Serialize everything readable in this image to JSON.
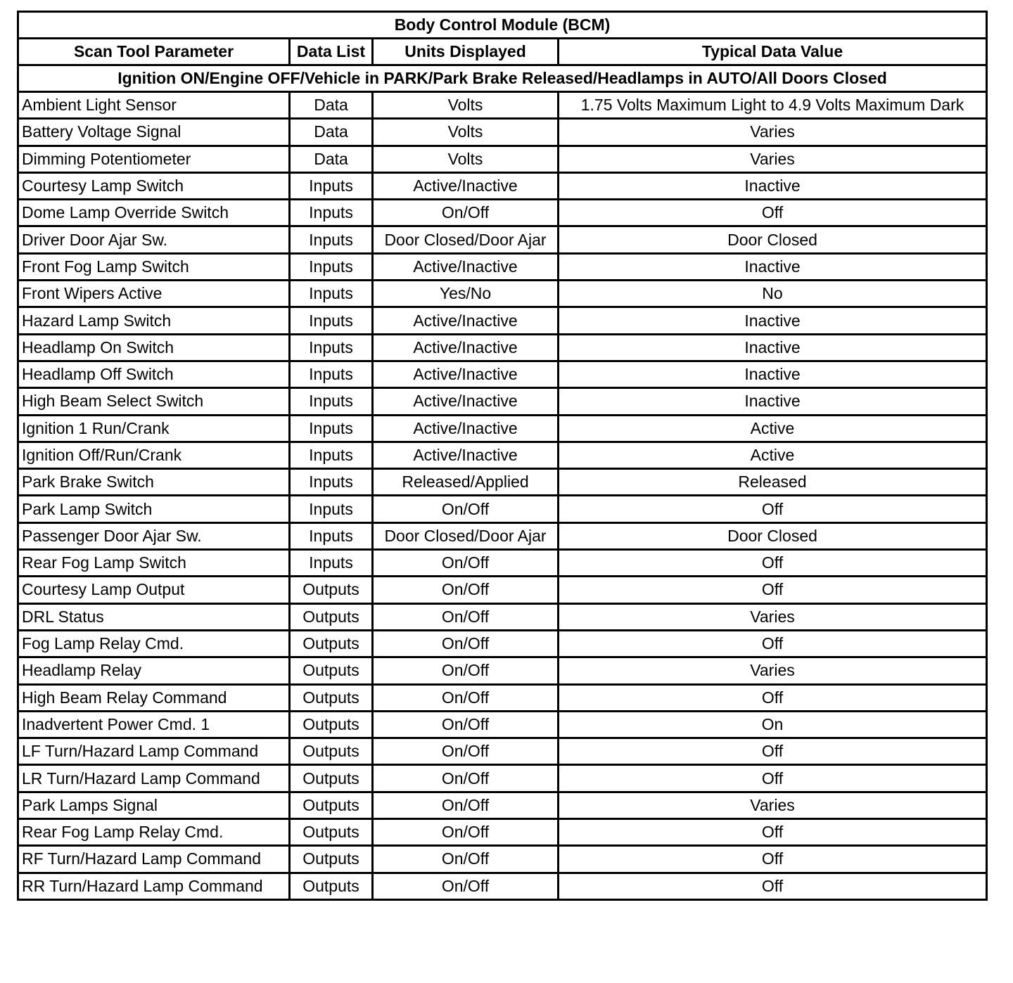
{
  "title": "Body Control Module (BCM)",
  "headers": [
    "Scan Tool Parameter",
    "Data List",
    "Units Displayed",
    "Typical Data Value"
  ],
  "condition": "Ignition ON/Engine OFF/Vehicle in PARK/Park Brake Released/Headlamps in AUTO/All Doors Closed",
  "rows": [
    [
      "Ambient Light Sensor",
      "Data",
      "Volts",
      "1.75 Volts Maximum Light to 4.9 Volts Maximum Dark"
    ],
    [
      "Battery Voltage Signal",
      "Data",
      "Volts",
      "Varies"
    ],
    [
      "Dimming Potentiometer",
      "Data",
      "Volts",
      "Varies"
    ],
    [
      "Courtesy Lamp Switch",
      "Inputs",
      "Active/Inactive",
      "Inactive"
    ],
    [
      "Dome Lamp Override Switch",
      "Inputs",
      "On/Off",
      "Off"
    ],
    [
      "Driver Door Ajar Sw.",
      "Inputs",
      "Door Closed/Door Ajar",
      "Door Closed"
    ],
    [
      "Front Fog Lamp Switch",
      "Inputs",
      "Active/Inactive",
      "Inactive"
    ],
    [
      "Front Wipers Active",
      "Inputs",
      "Yes/No",
      "No"
    ],
    [
      "Hazard Lamp Switch",
      "Inputs",
      "Active/Inactive",
      "Inactive"
    ],
    [
      "Headlamp On Switch",
      "Inputs",
      "Active/Inactive",
      "Inactive"
    ],
    [
      "Headlamp Off Switch",
      "Inputs",
      "Active/Inactive",
      "Inactive"
    ],
    [
      "High Beam Select Switch",
      "Inputs",
      "Active/Inactive",
      "Inactive"
    ],
    [
      "Ignition 1 Run/Crank",
      "Inputs",
      "Active/Inactive",
      "Active"
    ],
    [
      "Ignition Off/Run/Crank",
      "Inputs",
      "Active/Inactive",
      "Active"
    ],
    [
      "Park Brake Switch",
      "Inputs",
      "Released/Applied",
      "Released"
    ],
    [
      "Park Lamp Switch",
      "Inputs",
      "On/Off",
      "Off"
    ],
    [
      "Passenger Door Ajar Sw.",
      "Inputs",
      "Door Closed/Door Ajar",
      "Door Closed"
    ],
    [
      "Rear Fog Lamp Switch",
      "Inputs",
      "On/Off",
      "Off"
    ],
    [
      "Courtesy Lamp Output",
      "Outputs",
      "On/Off",
      "Off"
    ],
    [
      "DRL Status",
      "Outputs",
      "On/Off",
      "Varies"
    ],
    [
      "Fog Lamp Relay Cmd.",
      "Outputs",
      "On/Off",
      "Off"
    ],
    [
      "Headlamp Relay",
      "Outputs",
      "On/Off",
      "Varies"
    ],
    [
      "High Beam Relay Command",
      "Outputs",
      "On/Off",
      "Off"
    ],
    [
      "Inadvertent Power Cmd. 1",
      "Outputs",
      "On/Off",
      "On"
    ],
    [
      "LF Turn/Hazard Lamp Command",
      "Outputs",
      "On/Off",
      "Off"
    ],
    [
      "LR Turn/Hazard Lamp Command",
      "Outputs",
      "On/Off",
      "Off"
    ],
    [
      "Park Lamps Signal",
      "Outputs",
      "On/Off",
      "Varies"
    ],
    [
      "Rear Fog Lamp Relay Cmd.",
      "Outputs",
      "On/Off",
      "Off"
    ],
    [
      "RF Turn/Hazard Lamp Command",
      "Outputs",
      "On/Off",
      "Off"
    ],
    [
      "RR Turn/Hazard Lamp Command",
      "Outputs",
      "On/Off",
      "Off"
    ]
  ]
}
